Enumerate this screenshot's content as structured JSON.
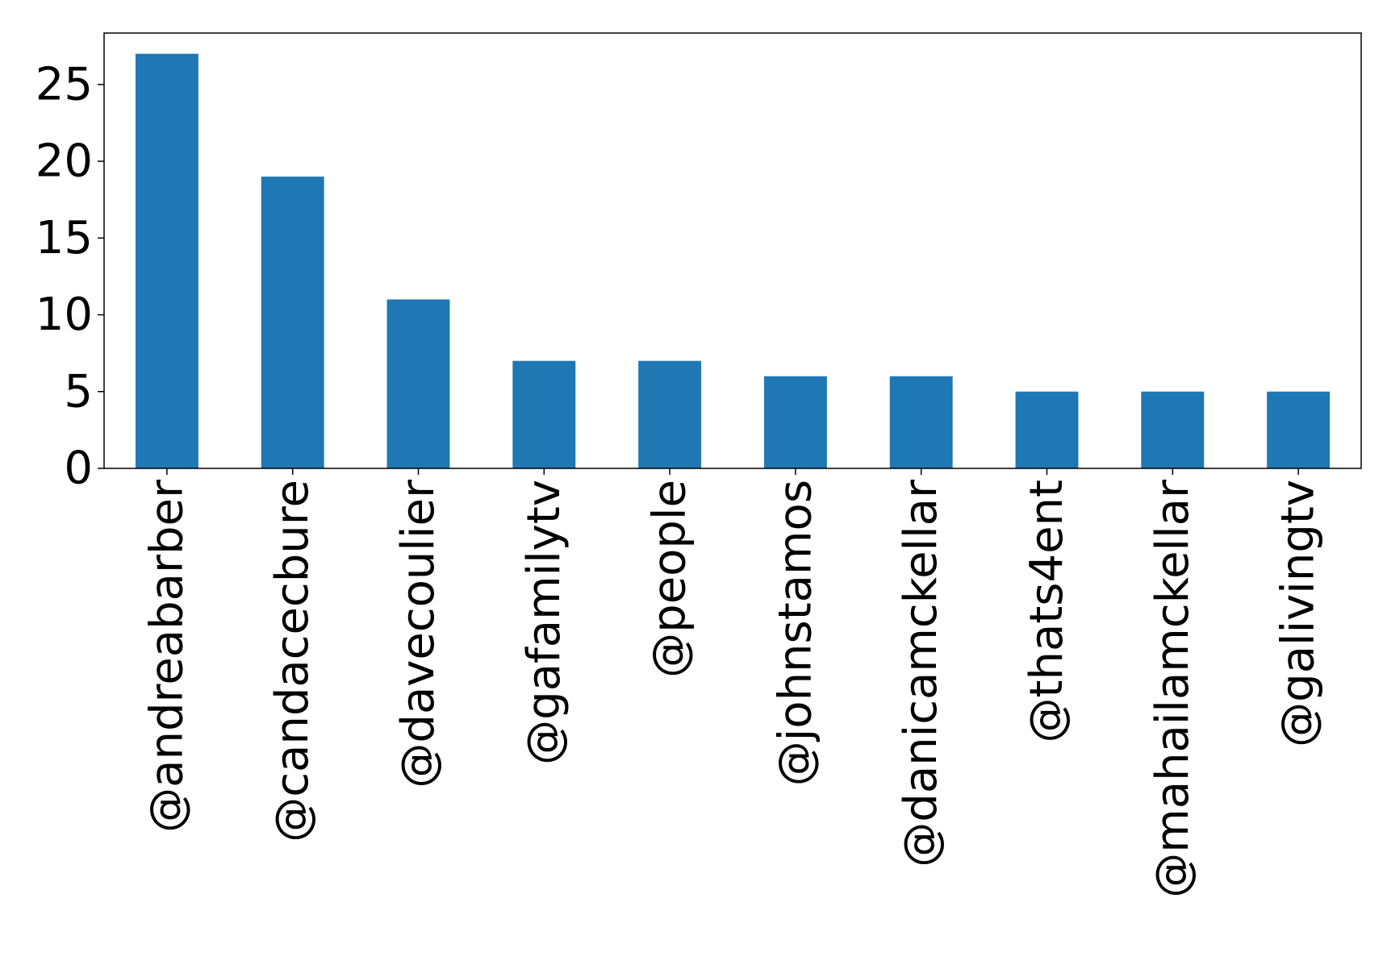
{
  "chart_data": {
    "type": "bar",
    "title": "",
    "xlabel": "",
    "ylabel": "",
    "categories": [
      "@andreabarber",
      "@candacecbure",
      "@davecoulier",
      "@gafamilytv",
      "@people",
      "@johnstamos",
      "@danicamckellar",
      "@thats4ent",
      "@mahailamckellar",
      "@galivingtv"
    ],
    "values": [
      27,
      19,
      11,
      7,
      7,
      6,
      6,
      5,
      5,
      5
    ],
    "ylim": [
      0,
      28.35
    ],
    "yticks": [
      0,
      5,
      10,
      15,
      20,
      25
    ],
    "grid": false,
    "legend": "none",
    "bar_color": "#1f77b4"
  }
}
